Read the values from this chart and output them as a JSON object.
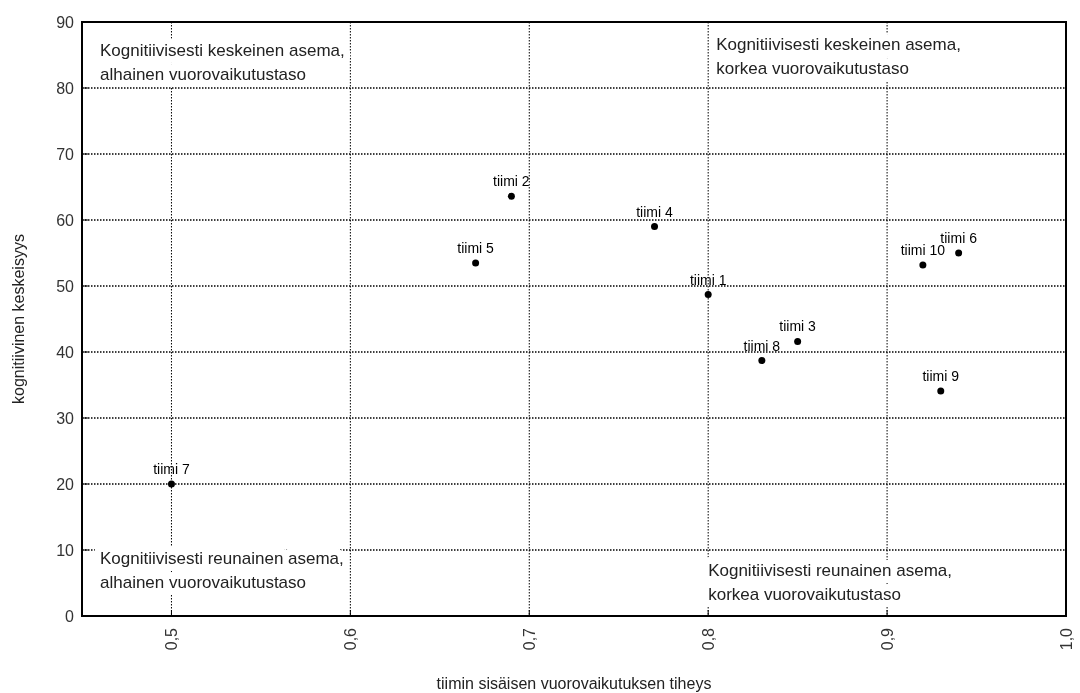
{
  "chart_data": {
    "type": "scatter",
    "xlabel": "tiimin sisäisen vuorovaikutuksen tiheys",
    "ylabel": "kognitiivinen keskeisyys",
    "x": [
      0.8,
      0.69,
      0.85,
      0.77,
      0.67,
      0.94,
      0.5,
      0.83,
      0.93,
      0.92
    ],
    "series": [
      {
        "color": "#000000",
        "values": [
          48.7,
          63.6,
          41.6,
          59.0,
          53.5,
          55.0,
          20,
          38.7,
          34.1,
          53.2
        ],
        "value_labels": [
          "tiimi 1",
          "tiimi 2",
          "tiimi 3",
          "tiimi 4",
          "tiimi 5",
          "tiimi 6",
          "tiimi 7",
          "tiimi 8",
          "tiimi 9",
          "tiimi 10"
        ]
      }
    ],
    "xlim": [
      0.45,
      1.0
    ],
    "xticks": [
      {
        "value": 0.5,
        "label": "0,5"
      },
      {
        "value": 0.6,
        "label": "0,6"
      },
      {
        "value": 0.7,
        "label": "0,7"
      },
      {
        "value": 0.8,
        "label": "0,8"
      },
      {
        "value": 0.9,
        "label": "0,9"
      },
      {
        "value": 1.0,
        "label": "1,0"
      }
    ],
    "ylim": [
      0,
      90
    ],
    "yticks": [
      0,
      10,
      20,
      30,
      40,
      50,
      60,
      70,
      80,
      90
    ],
    "grid": true,
    "marker": "circle",
    "annotations": [
      "Kognitiivisesti keskeinen asema,\nalhainen vuorovaikutustaso",
      "Kognitiivisesti keskeinen asema,\nkorkea vuorovaikutustaso",
      "Kognitiivisesti reunainen asema,\nalhainen vuorovaikutustaso",
      "Kognitiivisesti reunainen asema,\nkorkea vuorovaikutustaso"
    ]
  }
}
